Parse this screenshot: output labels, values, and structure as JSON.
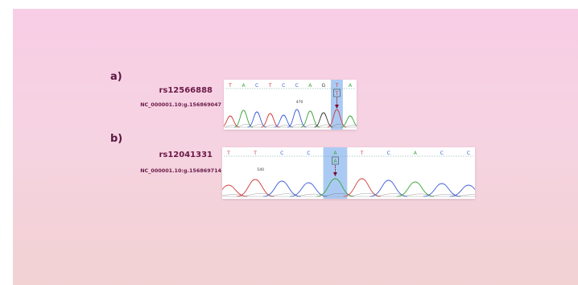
{
  "panel_a": {
    "letter": "a)",
    "snp_id": "rs12566888",
    "hgvs": "NC_000001.10:g.156869047",
    "bases": [
      "T",
      "A",
      "C",
      "T",
      "C",
      "C",
      "A",
      "G",
      "T",
      "A"
    ],
    "highlight_index": 8,
    "boxed_label": "T",
    "position_label": "470",
    "colors": {
      "A": "#3aa43a",
      "C": "#3a5bd9",
      "G": "#333333",
      "T": "#d23a3a"
    }
  },
  "panel_b": {
    "letter": "b)",
    "snp_id": "rs12041331",
    "hgvs": "NC_000001.10:g.156869714",
    "bases": [
      "T",
      "T",
      "C",
      "C",
      "A",
      "T",
      "C",
      "A",
      "C",
      "C"
    ],
    "highlight_index": 4,
    "boxed_label": "A",
    "position_label": "540",
    "colors": {
      "A": "#3aa43a",
      "C": "#3a5bd9",
      "G": "#333333",
      "T": "#d23a3a"
    }
  }
}
